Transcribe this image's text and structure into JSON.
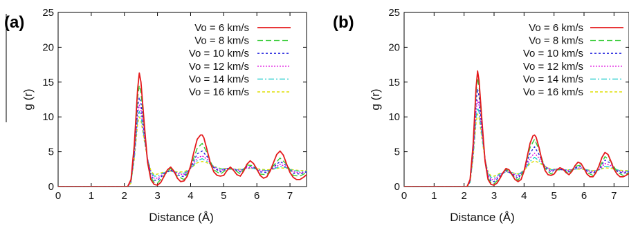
{
  "chart_data": [
    {
      "type": "line",
      "panel_label": "(a)",
      "xlabel": "Distance (Å)",
      "ylabel": "g (r)",
      "xlim": [
        0,
        7.5
      ],
      "ylim": [
        0,
        25
      ],
      "xticks": [
        "0",
        "1",
        "2",
        "3",
        "4",
        "5",
        "6",
        "7"
      ],
      "yticks": [
        "0",
        "5",
        "10",
        "15",
        "20",
        "25"
      ],
      "legend_position": "top-right",
      "series": [
        {
          "name": "Vo = 6 km/s",
          "color": "#e41a1c",
          "dash": "solid",
          "x": [
            0,
            2.1,
            2.2,
            2.3,
            2.4,
            2.45,
            2.5,
            2.6,
            2.7,
            2.8,
            2.9,
            3.0,
            3.1,
            3.2,
            3.3,
            3.4,
            3.5,
            3.6,
            3.7,
            3.8,
            3.9,
            4.0,
            4.1,
            4.2,
            4.3,
            4.35,
            4.4,
            4.5,
            4.6,
            4.7,
            4.8,
            4.9,
            5.0,
            5.1,
            5.2,
            5.3,
            5.4,
            5.5,
            5.6,
            5.7,
            5.8,
            5.9,
            6.0,
            6.1,
            6.2,
            6.3,
            6.4,
            6.5,
            6.6,
            6.7,
            6.8,
            6.9,
            7.0,
            7.1,
            7.2,
            7.3,
            7.4,
            7.5
          ],
          "y": [
            0,
            0,
            1.0,
            6.0,
            14.0,
            16.3,
            15.0,
            9.0,
            3.5,
            1.0,
            0.3,
            0.2,
            0.6,
            1.5,
            2.4,
            2.8,
            2.2,
            1.2,
            0.7,
            0.8,
            1.5,
            3.0,
            5.0,
            6.8,
            7.4,
            7.4,
            7.0,
            5.2,
            3.3,
            2.1,
            1.6,
            1.5,
            1.6,
            2.3,
            2.8,
            2.3,
            1.7,
            1.5,
            2.2,
            3.2,
            3.7,
            3.3,
            2.5,
            1.6,
            1.2,
            1.4,
            2.2,
            3.4,
            4.6,
            5.1,
            4.5,
            3.2,
            2.0,
            1.3,
            1.0,
            1.0,
            1.3,
            1.7
          ]
        },
        {
          "name": "Vo = 8 km/s",
          "color": "#33cc33",
          "dash": "8,4",
          "x": [
            0,
            2.1,
            2.2,
            2.3,
            2.4,
            2.45,
            2.5,
            2.6,
            2.7,
            2.8,
            2.9,
            3.0,
            3.2,
            3.4,
            3.6,
            3.8,
            4.0,
            4.2,
            4.35,
            4.5,
            4.7,
            4.9,
            5.1,
            5.3,
            5.5,
            5.7,
            5.9,
            6.1,
            6.3,
            6.5,
            6.7,
            6.9,
            7.1,
            7.3,
            7.5
          ],
          "y": [
            0,
            0,
            0.9,
            5.5,
            12.8,
            14.5,
            13.5,
            8.5,
            3.7,
            1.3,
            0.6,
            0.5,
            1.6,
            2.6,
            1.5,
            1.0,
            2.8,
            5.5,
            6.2,
            4.8,
            2.4,
            1.8,
            2.5,
            2.5,
            1.8,
            3.1,
            3.0,
            1.8,
            1.7,
            3.0,
            4.1,
            3.2,
            1.6,
            1.5,
            2.0
          ]
        },
        {
          "name": "Vo = 10 km/s",
          "color": "#2222dd",
          "dash": "3,3",
          "x": [
            0,
            2.1,
            2.2,
            2.3,
            2.4,
            2.45,
            2.5,
            2.6,
            2.7,
            2.8,
            2.9,
            3.0,
            3.2,
            3.4,
            3.6,
            3.8,
            4.0,
            4.2,
            4.35,
            4.5,
            4.7,
            4.9,
            5.1,
            5.3,
            5.5,
            5.7,
            5.9,
            6.1,
            6.3,
            6.5,
            6.7,
            6.9,
            7.1,
            7.3,
            7.5
          ],
          "y": [
            0,
            0,
            0.8,
            5.0,
            11.5,
            12.8,
            12.0,
            7.8,
            3.9,
            1.6,
            0.9,
            0.9,
            1.8,
            2.4,
            1.7,
            1.4,
            2.7,
            4.7,
            5.1,
            4.3,
            2.7,
            2.1,
            2.6,
            2.5,
            2.1,
            2.9,
            2.8,
            2.1,
            2.0,
            2.8,
            3.6,
            3.0,
            1.9,
            1.8,
            2.1
          ]
        },
        {
          "name": "Vo = 12 km/s",
          "color": "#dd00dd",
          "dash": "2,2",
          "x": [
            0,
            2.1,
            2.2,
            2.3,
            2.4,
            2.45,
            2.5,
            2.6,
            2.7,
            2.8,
            2.9,
            3.0,
            3.2,
            3.4,
            3.6,
            3.8,
            4.0,
            4.2,
            4.35,
            4.5,
            4.7,
            4.9,
            5.1,
            5.3,
            5.5,
            5.7,
            5.9,
            6.1,
            6.3,
            6.5,
            6.7,
            6.9,
            7.1,
            7.3,
            7.5
          ],
          "y": [
            0,
            0,
            0.7,
            4.6,
            10.5,
            11.7,
            11.0,
            7.3,
            4.0,
            1.9,
            1.2,
            1.2,
            1.9,
            2.3,
            1.9,
            1.7,
            2.6,
            4.1,
            4.4,
            3.9,
            2.8,
            2.3,
            2.6,
            2.5,
            2.3,
            2.7,
            2.7,
            2.3,
            2.2,
            2.6,
            3.2,
            2.8,
            2.1,
            2.0,
            2.1
          ]
        },
        {
          "name": "Vo = 14 km/s",
          "color": "#22cccc",
          "dash": "8,3,2,3",
          "x": [
            0,
            2.1,
            2.2,
            2.3,
            2.4,
            2.45,
            2.5,
            2.6,
            2.7,
            2.8,
            2.9,
            3.0,
            3.2,
            3.4,
            3.6,
            3.8,
            4.0,
            4.2,
            4.35,
            4.5,
            4.7,
            4.9,
            5.1,
            5.3,
            5.5,
            5.7,
            5.9,
            6.1,
            6.3,
            6.5,
            6.7,
            6.9,
            7.1,
            7.3,
            7.5
          ],
          "y": [
            0,
            0,
            0.6,
            4.2,
            9.7,
            10.8,
            10.2,
            6.9,
            4.0,
            2.1,
            1.5,
            1.5,
            2.0,
            2.2,
            2.0,
            1.9,
            2.6,
            3.7,
            4.0,
            3.6,
            2.9,
            2.5,
            2.6,
            2.5,
            2.4,
            2.6,
            2.6,
            2.4,
            2.3,
            2.5,
            2.9,
            2.7,
            2.3,
            2.2,
            2.2
          ]
        },
        {
          "name": "Vo = 16 km/s",
          "color": "#dddd00",
          "dash": "4,3",
          "x": [
            0,
            2.1,
            2.2,
            2.3,
            2.4,
            2.45,
            2.5,
            2.6,
            2.7,
            2.8,
            2.9,
            3.0,
            3.2,
            3.4,
            3.6,
            3.8,
            4.0,
            4.2,
            4.35,
            4.5,
            4.7,
            4.9,
            5.1,
            5.3,
            5.5,
            5.7,
            5.9,
            6.1,
            6.3,
            6.5,
            6.7,
            6.9,
            7.1,
            7.3,
            7.5
          ],
          "y": [
            0,
            0,
            0.5,
            3.9,
            9.0,
            10.0,
            9.5,
            6.6,
            4.0,
            2.3,
            1.7,
            1.8,
            2.1,
            2.2,
            2.1,
            2.1,
            2.6,
            3.4,
            3.6,
            3.4,
            2.9,
            2.6,
            2.6,
            2.5,
            2.5,
            2.6,
            2.6,
            2.5,
            2.4,
            2.5,
            2.7,
            2.6,
            2.4,
            2.3,
            2.3
          ]
        }
      ]
    },
    {
      "type": "line",
      "panel_label": "(b)",
      "xlabel": "Distance (Å)",
      "ylabel": "g (r)",
      "xlim": [
        0,
        7.5
      ],
      "ylim": [
        0,
        25
      ],
      "xticks": [
        "0",
        "1",
        "2",
        "3",
        "4",
        "5",
        "6",
        "7"
      ],
      "yticks": [
        "0",
        "5",
        "10",
        "15",
        "20",
        "25"
      ],
      "legend_position": "top-right",
      "series": [
        {
          "name": "Vo = 6 km/s",
          "color": "#e41a1c",
          "dash": "solid",
          "x": [
            0,
            2.1,
            2.2,
            2.3,
            2.4,
            2.45,
            2.5,
            2.6,
            2.7,
            2.8,
            2.9,
            3.0,
            3.1,
            3.2,
            3.3,
            3.4,
            3.5,
            3.6,
            3.7,
            3.8,
            3.9,
            4.0,
            4.1,
            4.2,
            4.3,
            4.35,
            4.4,
            4.5,
            4.6,
            4.7,
            4.8,
            4.9,
            5.0,
            5.1,
            5.2,
            5.3,
            5.4,
            5.5,
            5.6,
            5.7,
            5.8,
            5.9,
            6.0,
            6.1,
            6.2,
            6.3,
            6.4,
            6.5,
            6.6,
            6.7,
            6.8,
            6.9,
            7.0,
            7.1,
            7.2,
            7.3,
            7.4,
            7.5
          ],
          "y": [
            0,
            0,
            1.0,
            6.0,
            14.2,
            16.6,
            15.2,
            9.2,
            3.6,
            1.0,
            0.3,
            0.2,
            0.5,
            1.2,
            2.0,
            2.6,
            2.4,
            1.7,
            1.0,
            0.7,
            1.0,
            2.2,
            4.2,
            6.2,
            7.3,
            7.4,
            7.1,
            5.6,
            3.7,
            2.3,
            1.7,
            1.6,
            1.8,
            2.4,
            2.7,
            2.5,
            2.0,
            1.7,
            2.2,
            3.0,
            3.5,
            3.3,
            2.6,
            1.8,
            1.4,
            1.4,
            2.0,
            3.0,
            4.2,
            4.9,
            4.6,
            3.6,
            2.5,
            1.8,
            1.4,
            1.4,
            1.6,
            1.9
          ]
        },
        {
          "name": "Vo = 8 km/s",
          "color": "#33cc33",
          "dash": "8,4",
          "x": [
            0,
            2.1,
            2.2,
            2.3,
            2.4,
            2.45,
            2.5,
            2.6,
            2.7,
            2.8,
            2.9,
            3.0,
            3.2,
            3.4,
            3.6,
            3.8,
            4.0,
            4.2,
            4.35,
            4.5,
            4.7,
            4.9,
            5.1,
            5.3,
            5.5,
            5.7,
            5.9,
            6.1,
            6.3,
            6.5,
            6.7,
            6.9,
            7.1,
            7.3,
            7.5
          ],
          "y": [
            0,
            0,
            0.9,
            5.7,
            13.4,
            15.6,
            14.4,
            8.8,
            3.7,
            1.2,
            0.5,
            0.4,
            1.3,
            2.5,
            1.7,
            0.9,
            2.3,
            5.6,
            6.8,
            5.3,
            2.6,
            1.8,
            2.4,
            2.4,
            1.9,
            2.9,
            3.1,
            2.0,
            1.6,
            2.6,
            4.3,
            3.6,
            2.1,
            1.6,
            2.0
          ]
        },
        {
          "name": "Vo = 10 km/s",
          "color": "#2222dd",
          "dash": "3,3",
          "x": [
            0,
            2.1,
            2.2,
            2.3,
            2.4,
            2.45,
            2.5,
            2.6,
            2.7,
            2.8,
            2.9,
            3.0,
            3.2,
            3.4,
            3.6,
            3.8,
            4.0,
            4.2,
            4.35,
            4.5,
            4.7,
            4.9,
            5.1,
            5.3,
            5.5,
            5.7,
            5.9,
            6.1,
            6.3,
            6.5,
            6.7,
            6.9,
            7.1,
            7.3,
            7.5
          ],
          "y": [
            0,
            0,
            0.8,
            5.2,
            12.2,
            14.0,
            13.0,
            8.2,
            3.8,
            1.4,
            0.8,
            0.7,
            1.5,
            2.3,
            1.8,
            1.2,
            2.3,
            4.8,
            5.7,
            4.6,
            2.8,
            2.1,
            2.5,
            2.4,
            2.1,
            2.7,
            2.9,
            2.2,
            1.9,
            2.5,
            3.8,
            3.3,
            2.2,
            1.9,
            2.1
          ]
        },
        {
          "name": "Vo = 12 km/s",
          "color": "#dd00dd",
          "dash": "2,2",
          "x": [
            0,
            2.1,
            2.2,
            2.3,
            2.4,
            2.45,
            2.5,
            2.6,
            2.7,
            2.8,
            2.9,
            3.0,
            3.2,
            3.4,
            3.6,
            3.8,
            4.0,
            4.2,
            4.35,
            4.5,
            4.7,
            4.9,
            5.1,
            5.3,
            5.5,
            5.7,
            5.9,
            6.1,
            6.3,
            6.5,
            6.7,
            6.9,
            7.1,
            7.3,
            7.5
          ],
          "y": [
            0,
            0,
            0.7,
            4.7,
            11.0,
            12.4,
            11.7,
            7.6,
            3.9,
            1.7,
            1.0,
            1.0,
            1.7,
            2.2,
            1.9,
            1.5,
            2.3,
            4.1,
            4.8,
            4.1,
            2.9,
            2.3,
            2.5,
            2.4,
            2.3,
            2.6,
            2.7,
            2.3,
            2.1,
            2.4,
            3.3,
            3.0,
            2.3,
            2.1,
            2.1
          ]
        },
        {
          "name": "Vo = 14 km/s",
          "color": "#22cccc",
          "dash": "8,3,2,3",
          "x": [
            0,
            2.1,
            2.2,
            2.3,
            2.4,
            2.45,
            2.5,
            2.6,
            2.7,
            2.8,
            2.9,
            3.0,
            3.2,
            3.4,
            3.6,
            3.8,
            4.0,
            4.2,
            4.35,
            4.5,
            4.7,
            4.9,
            5.1,
            5.3,
            5.5,
            5.7,
            5.9,
            6.1,
            6.3,
            6.5,
            6.7,
            6.9,
            7.1,
            7.3,
            7.5
          ],
          "y": [
            0,
            0,
            0.6,
            4.3,
            10.0,
            11.3,
            10.7,
            7.1,
            3.9,
            1.9,
            1.3,
            1.3,
            1.8,
            2.1,
            2.0,
            1.7,
            2.3,
            3.6,
            4.2,
            3.7,
            2.9,
            2.4,
            2.5,
            2.4,
            2.4,
            2.5,
            2.6,
            2.4,
            2.2,
            2.4,
            2.9,
            2.8,
            2.4,
            2.2,
            2.2
          ]
        },
        {
          "name": "Vo = 16 km/s",
          "color": "#dddd00",
          "dash": "4,3",
          "x": [
            0,
            2.1,
            2.2,
            2.3,
            2.4,
            2.45,
            2.5,
            2.6,
            2.7,
            2.8,
            2.9,
            3.0,
            3.2,
            3.4,
            3.6,
            3.8,
            4.0,
            4.2,
            4.35,
            4.5,
            4.7,
            4.9,
            5.1,
            5.3,
            5.5,
            5.7,
            5.9,
            6.1,
            6.3,
            6.5,
            6.7,
            6.9,
            7.1,
            7.3,
            7.5
          ],
          "y": [
            0,
            0,
            0.5,
            4.0,
            9.2,
            10.4,
            9.9,
            6.7,
            3.9,
            2.1,
            1.5,
            1.5,
            1.9,
            2.1,
            2.0,
            1.8,
            2.3,
            3.3,
            3.7,
            3.4,
            2.9,
            2.5,
            2.5,
            2.4,
            2.4,
            2.5,
            2.5,
            2.4,
            2.3,
            2.4,
            2.7,
            2.6,
            2.4,
            2.3,
            2.3
          ]
        }
      ]
    }
  ]
}
